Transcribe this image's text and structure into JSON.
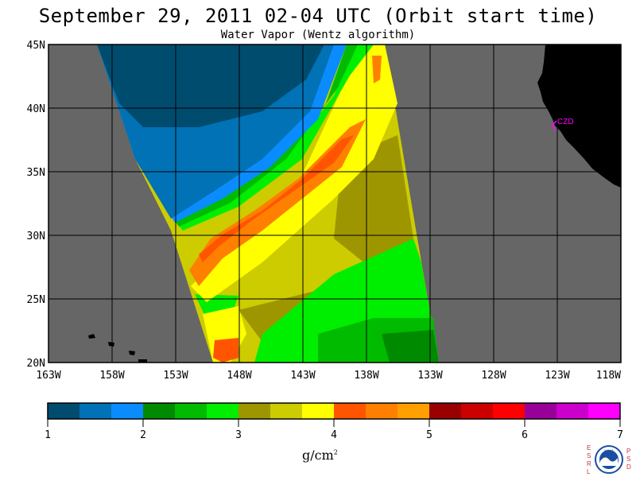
{
  "title": "September 29, 2011  02-04 UTC  (Orbit start time)",
  "subtitle": "Water Vapor (Wentz algorithm)",
  "map": {
    "lat_labels": [
      "45N",
      "40N",
      "35N",
      "30N",
      "25N",
      "20N"
    ],
    "lon_labels": [
      "163W",
      "158W",
      "153W",
      "148W",
      "143W",
      "138W",
      "133W",
      "128W",
      "123W",
      "118W"
    ],
    "station_label": "CZD",
    "colors": {
      "ocean": "#666666",
      "land": "#000000",
      "station": "#ff00ff"
    }
  },
  "colorbar": {
    "ticks": [
      "1",
      "2",
      "3",
      "4",
      "5",
      "6",
      "7"
    ],
    "units_base": "g/cm",
    "units_exp": "2",
    "colors": [
      "#004c6f",
      "#0072b5",
      "#0a8cff",
      "#008a00",
      "#00bb00",
      "#00ee00",
      "#9e9600",
      "#cccc00",
      "#ffff00",
      "#ff5500",
      "#ff7f00",
      "#ffa000",
      "#990000",
      "#cc0000",
      "#ff0000",
      "#990099",
      "#cc00cc",
      "#ff00ff"
    ]
  },
  "logo": {
    "left_letters": "ESRL",
    "right_letters": "PSD",
    "center_text": "NOAA"
  }
}
